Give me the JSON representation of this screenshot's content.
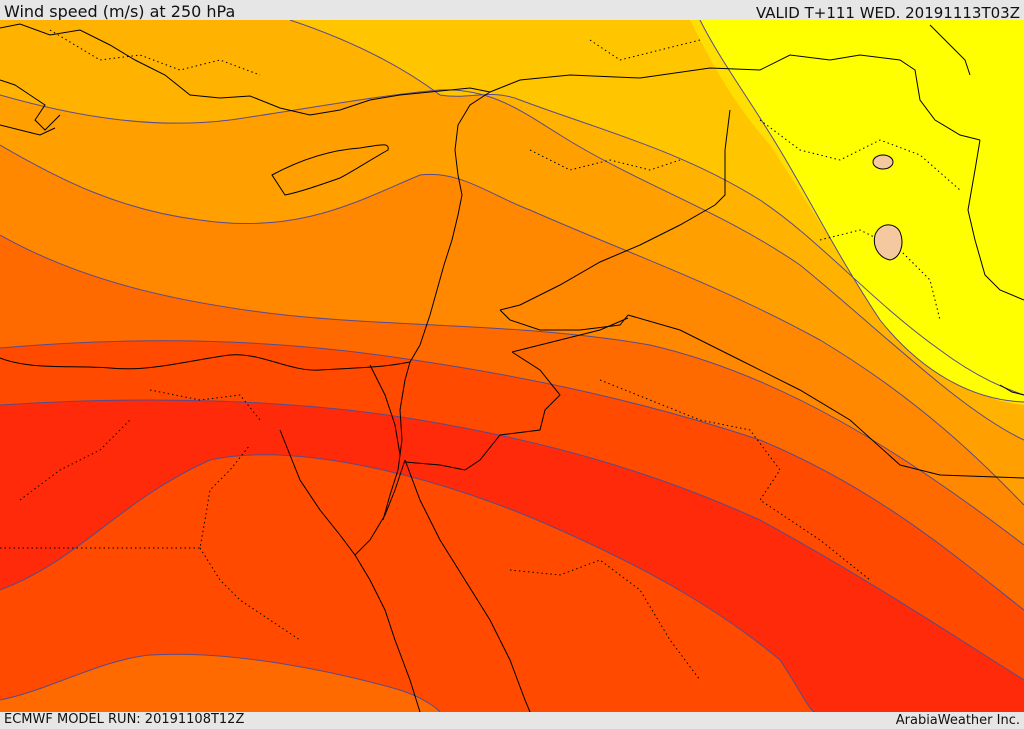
{
  "header": {
    "title": "Wind speed (m/s) at 250 hPa",
    "valid": "VALID T+111 WED. 20191113T03Z"
  },
  "footer": {
    "model_run": "ECMWF MODEL RUN: 20191108T12Z",
    "credit": "ArabiaWeather Inc."
  },
  "colors": {
    "band_1": "#ffff00",
    "band_2": "#ffdf00",
    "band_3": "#ffc600",
    "band_4": "#ffb300",
    "band_5": "#ffa000",
    "band_6": "#ff8800",
    "band_7": "#ff6a00",
    "band_8": "#ff4a00",
    "band_9": "#ff2a0a",
    "isotach_line": "#5a4a8a",
    "coastline": "#000000",
    "lake": "#f5c9a0"
  }
}
